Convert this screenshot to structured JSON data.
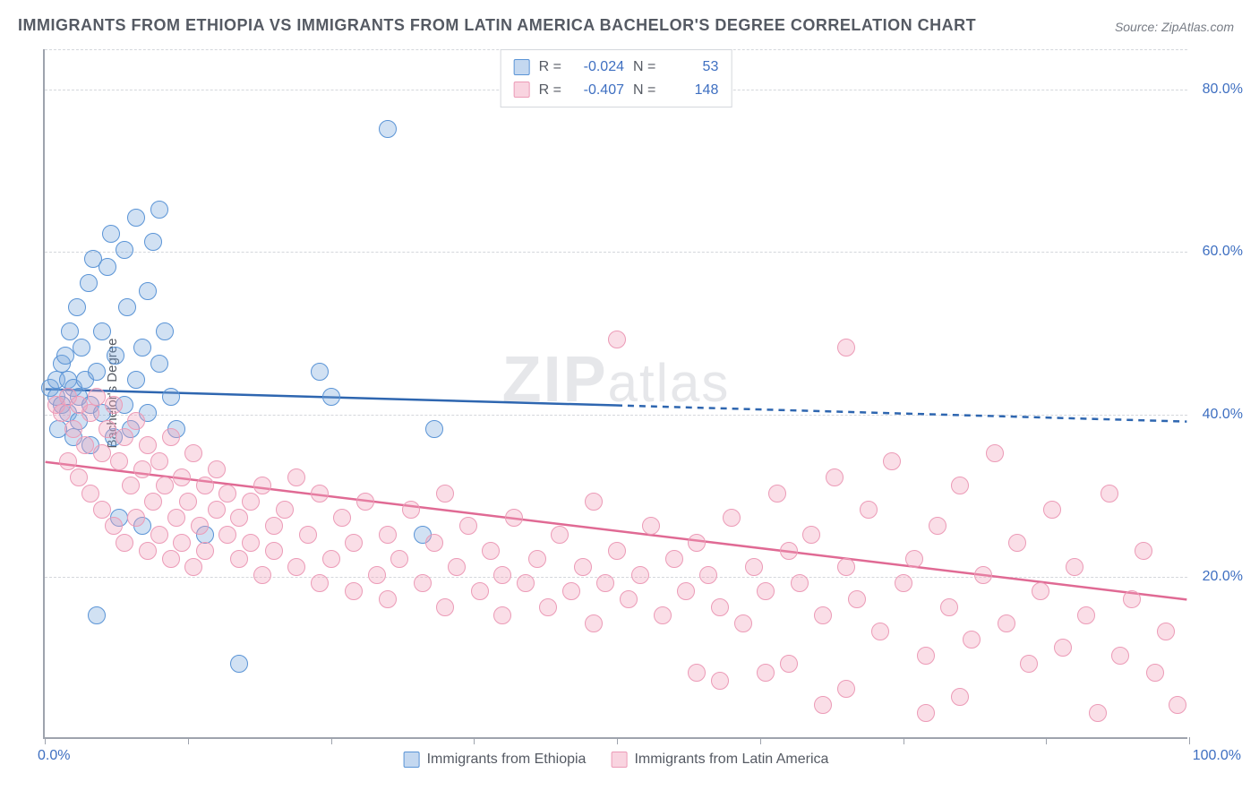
{
  "title": "IMMIGRANTS FROM ETHIOPIA VS IMMIGRANTS FROM LATIN AMERICA BACHELOR'S DEGREE CORRELATION CHART",
  "source": "Source: ZipAtlas.com",
  "watermark_prefix": "ZIP",
  "watermark_suffix": "atlas",
  "chart": {
    "type": "scatter",
    "ylabel": "Bachelor's Degree",
    "xlim": [
      0,
      100
    ],
    "ylim": [
      0,
      85
    ],
    "xtick_positions": [
      0,
      12.5,
      25,
      37.5,
      50,
      62.5,
      75,
      87.5,
      100
    ],
    "xtick_labels": {
      "0": "0.0%",
      "100": "100.0%"
    },
    "ytick_positions": [
      20,
      40,
      60,
      80
    ],
    "ytick_labels": [
      "20.0%",
      "40.0%",
      "60.0%",
      "80.0%"
    ],
    "grid_color": "#d4d7dc",
    "grid_dashed": true,
    "axis_color": "#9ea3ad",
    "background_color": "#ffffff",
    "marker_radius": 10,
    "series": [
      {
        "name": "Immigrants from Ethiopia",
        "color_fill": "rgba(124,169,222,0.35)",
        "color_stroke": "#5a94d6",
        "swatch_class": "sw-blue",
        "pt_class": "pt-blue",
        "R": "-0.024",
        "N": "53",
        "regression": {
          "x0": 0,
          "y0": 43,
          "x1": 100,
          "y1": 39,
          "solid_until_x": 50,
          "color": "#2e66b0",
          "width": 2.5
        },
        "points": [
          [
            0.5,
            43
          ],
          [
            1,
            44
          ],
          [
            1,
            42
          ],
          [
            1.2,
            38
          ],
          [
            1.5,
            46
          ],
          [
            1.5,
            41
          ],
          [
            1.8,
            47
          ],
          [
            2,
            44
          ],
          [
            2,
            40
          ],
          [
            2.2,
            50
          ],
          [
            2.5,
            43
          ],
          [
            2.5,
            37
          ],
          [
            2.8,
            53
          ],
          [
            3,
            42
          ],
          [
            3,
            39
          ],
          [
            3.2,
            48
          ],
          [
            3.5,
            44
          ],
          [
            3.8,
            56
          ],
          [
            4,
            41
          ],
          [
            4,
            36
          ],
          [
            4.2,
            59
          ],
          [
            4.5,
            45
          ],
          [
            4.5,
            15
          ],
          [
            5,
            50
          ],
          [
            5,
            40
          ],
          [
            5.5,
            58
          ],
          [
            5.8,
            62
          ],
          [
            6,
            37
          ],
          [
            6.2,
            47
          ],
          [
            6.5,
            27
          ],
          [
            7,
            60
          ],
          [
            7,
            41
          ],
          [
            7.2,
            53
          ],
          [
            7.5,
            38
          ],
          [
            8,
            64
          ],
          [
            8,
            44
          ],
          [
            8.5,
            48
          ],
          [
            8.5,
            26
          ],
          [
            9,
            55
          ],
          [
            9,
            40
          ],
          [
            9.5,
            61
          ],
          [
            10,
            65
          ],
          [
            10,
            46
          ],
          [
            10.5,
            50
          ],
          [
            11,
            42
          ],
          [
            11.5,
            38
          ],
          [
            14,
            25
          ],
          [
            17,
            9
          ],
          [
            24,
            45
          ],
          [
            25,
            42
          ],
          [
            30,
            75
          ],
          [
            33,
            25
          ],
          [
            34,
            38
          ]
        ]
      },
      {
        "name": "Immigrants from Latin America",
        "color_fill": "rgba(242,160,186,0.35)",
        "color_stroke": "#ec9bb7",
        "swatch_class": "sw-pink",
        "pt_class": "pt-pink",
        "R": "-0.407",
        "N": "148",
        "regression": {
          "x0": 0,
          "y0": 34,
          "x1": 100,
          "y1": 17,
          "solid_until_x": 100,
          "color": "#e06a94",
          "width": 2.5
        },
        "points": [
          [
            1,
            41
          ],
          [
            1.5,
            40
          ],
          [
            2,
            42
          ],
          [
            2,
            34
          ],
          [
            2.5,
            38
          ],
          [
            3,
            41
          ],
          [
            3,
            32
          ],
          [
            3.5,
            36
          ],
          [
            4,
            40
          ],
          [
            4,
            30
          ],
          [
            4.5,
            42
          ],
          [
            5,
            35
          ],
          [
            5,
            28
          ],
          [
            5.5,
            38
          ],
          [
            6,
            41
          ],
          [
            6,
            26
          ],
          [
            6.5,
            34
          ],
          [
            7,
            37
          ],
          [
            7,
            24
          ],
          [
            7.5,
            31
          ],
          [
            8,
            39
          ],
          [
            8,
            27
          ],
          [
            8.5,
            33
          ],
          [
            9,
            36
          ],
          [
            9,
            23
          ],
          [
            9.5,
            29
          ],
          [
            10,
            34
          ],
          [
            10,
            25
          ],
          [
            10.5,
            31
          ],
          [
            11,
            37
          ],
          [
            11,
            22
          ],
          [
            11.5,
            27
          ],
          [
            12,
            32
          ],
          [
            12,
            24
          ],
          [
            12.5,
            29
          ],
          [
            13,
            35
          ],
          [
            13,
            21
          ],
          [
            13.5,
            26
          ],
          [
            14,
            31
          ],
          [
            14,
            23
          ],
          [
            15,
            28
          ],
          [
            15,
            33
          ],
          [
            16,
            25
          ],
          [
            16,
            30
          ],
          [
            17,
            22
          ],
          [
            17,
            27
          ],
          [
            18,
            29
          ],
          [
            18,
            24
          ],
          [
            19,
            31
          ],
          [
            19,
            20
          ],
          [
            20,
            26
          ],
          [
            20,
            23
          ],
          [
            21,
            28
          ],
          [
            22,
            21
          ],
          [
            22,
            32
          ],
          [
            23,
            25
          ],
          [
            24,
            19
          ],
          [
            24,
            30
          ],
          [
            25,
            22
          ],
          [
            26,
            27
          ],
          [
            27,
            18
          ],
          [
            27,
            24
          ],
          [
            28,
            29
          ],
          [
            29,
            20
          ],
          [
            30,
            25
          ],
          [
            30,
            17
          ],
          [
            31,
            22
          ],
          [
            32,
            28
          ],
          [
            33,
            19
          ],
          [
            34,
            24
          ],
          [
            35,
            16
          ],
          [
            35,
            30
          ],
          [
            36,
            21
          ],
          [
            37,
            26
          ],
          [
            38,
            18
          ],
          [
            39,
            23
          ],
          [
            40,
            20
          ],
          [
            40,
            15
          ],
          [
            41,
            27
          ],
          [
            42,
            19
          ],
          [
            43,
            22
          ],
          [
            44,
            16
          ],
          [
            45,
            25
          ],
          [
            46,
            18
          ],
          [
            47,
            21
          ],
          [
            48,
            14
          ],
          [
            48,
            29
          ],
          [
            49,
            19
          ],
          [
            50,
            23
          ],
          [
            50,
            49
          ],
          [
            51,
            17
          ],
          [
            52,
            20
          ],
          [
            53,
            26
          ],
          [
            54,
            15
          ],
          [
            55,
            22
          ],
          [
            56,
            18
          ],
          [
            57,
            24
          ],
          [
            57,
            8
          ],
          [
            58,
            20
          ],
          [
            59,
            16
          ],
          [
            60,
            27
          ],
          [
            61,
            14
          ],
          [
            62,
            21
          ],
          [
            63,
            18
          ],
          [
            64,
            30
          ],
          [
            65,
            23
          ],
          [
            65,
            9
          ],
          [
            66,
            19
          ],
          [
            67,
            25
          ],
          [
            68,
            15
          ],
          [
            69,
            32
          ],
          [
            70,
            6
          ],
          [
            70,
            48
          ],
          [
            70,
            21
          ],
          [
            71,
            17
          ],
          [
            72,
            28
          ],
          [
            73,
            13
          ],
          [
            74,
            34
          ],
          [
            75,
            19
          ],
          [
            76,
            22
          ],
          [
            77,
            10
          ],
          [
            78,
            26
          ],
          [
            79,
            16
          ],
          [
            80,
            31
          ],
          [
            80,
            5
          ],
          [
            81,
            12
          ],
          [
            82,
            20
          ],
          [
            83,
            35
          ],
          [
            84,
            14
          ],
          [
            85,
            24
          ],
          [
            86,
            9
          ],
          [
            87,
            18
          ],
          [
            88,
            28
          ],
          [
            89,
            11
          ],
          [
            90,
            21
          ],
          [
            91,
            15
          ],
          [
            92,
            3
          ],
          [
            93,
            30
          ],
          [
            94,
            10
          ],
          [
            95,
            17
          ],
          [
            96,
            23
          ],
          [
            97,
            8
          ],
          [
            98,
            13
          ],
          [
            99,
            4
          ],
          [
            77,
            3
          ],
          [
            68,
            4
          ],
          [
            59,
            7
          ],
          [
            63,
            8
          ]
        ]
      }
    ]
  },
  "legend_top": {
    "R_label": "R =",
    "N_label": "N ="
  }
}
